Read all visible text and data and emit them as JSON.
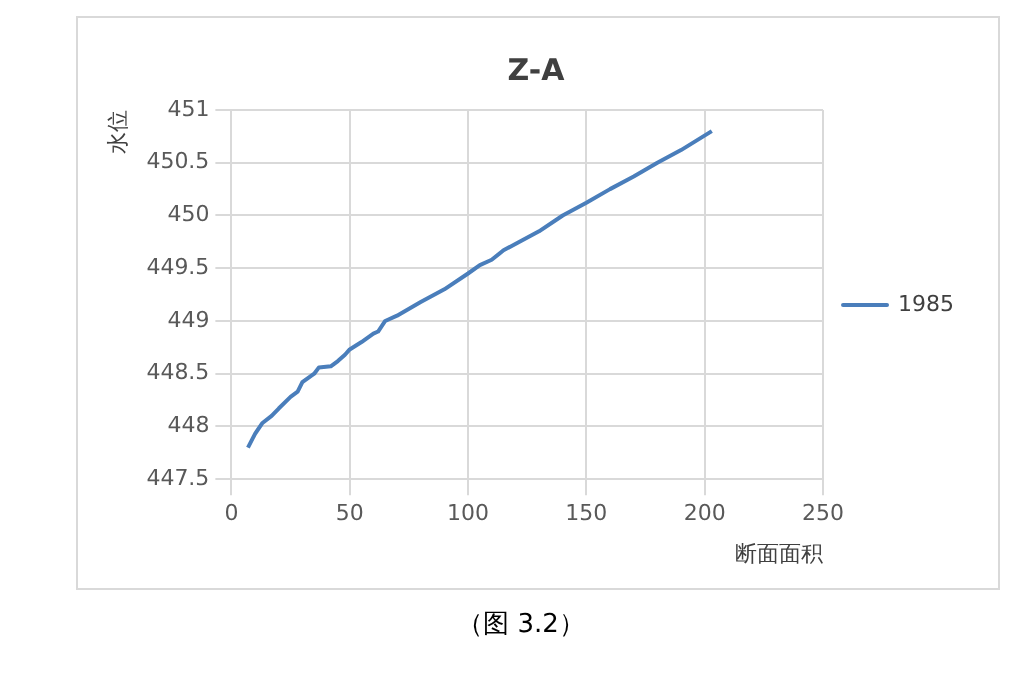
{
  "chart_data": {
    "type": "line",
    "title": "Z-A",
    "xlabel": "断面面积",
    "ylabel": "水位",
    "x": [
      7,
      10,
      13,
      17,
      20,
      25,
      28,
      30,
      35,
      37,
      42,
      45,
      48,
      50,
      55,
      60,
      62,
      65,
      70,
      80,
      90,
      100,
      105,
      110,
      115,
      120,
      130,
      140,
      150,
      160,
      170,
      180,
      190,
      203
    ],
    "series": [
      {
        "name": "1985",
        "color": "#4a7ebb",
        "values": [
          447.8,
          447.93,
          448.03,
          448.1,
          448.17,
          448.28,
          448.33,
          448.42,
          448.5,
          448.56,
          448.57,
          448.62,
          448.68,
          448.73,
          448.8,
          448.88,
          448.9,
          449.0,
          449.05,
          449.18,
          449.3,
          449.45,
          449.53,
          449.58,
          449.67,
          449.73,
          449.85,
          450.0,
          450.12,
          450.25,
          450.37,
          450.5,
          450.62,
          450.8
        ]
      }
    ],
    "xlim": [
      0,
      250
    ],
    "xticks": [
      0,
      50,
      100,
      150,
      200,
      250
    ],
    "ylim": [
      447.5,
      451
    ],
    "yticks": [
      447.5,
      448,
      448.5,
      449,
      449.5,
      450,
      450.5,
      451
    ],
    "grid": true,
    "legend": "right",
    "marker": "none",
    "line_style": "solid",
    "annotations": [
      "（图 3.2）"
    ]
  }
}
